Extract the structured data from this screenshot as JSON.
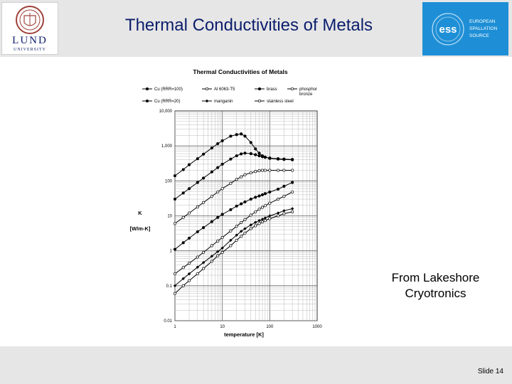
{
  "slide": {
    "title": "Thermal Conductivities of Metals",
    "credit_line1": "From Lakeshore",
    "credit_line2": "Cryotronics",
    "slide_number": "Slide 14",
    "lund_logo_text": "LUND",
    "lund_logo_subtext": "UNIVERSITY",
    "ess_logo_text": [
      "EUROPEAN",
      "SPALLATION",
      "SOURCE"
    ],
    "ess_logo_mark": "ess"
  },
  "colors": {
    "title": "#0b1e6b",
    "ess_blue": "#1e8fd6",
    "band": "#e6e6e6",
    "lund_red": "#a0423a"
  },
  "chart_data": {
    "type": "line",
    "title": "Thermal Conductivities of Metals",
    "xlabel": "temperature [K]",
    "ylabel_line1": "K",
    "ylabel_line2": "[W/m-K]",
    "xscale": "log",
    "yscale": "log",
    "xlim": [
      1,
      1000
    ],
    "ylim": [
      0.01,
      10000
    ],
    "grid": true,
    "legend_position": "top",
    "x_tick_labels": [
      "1",
      "10",
      "100",
      "1000"
    ],
    "y_tick_labels": [
      "0.01",
      "0.1",
      "1",
      "10",
      "100",
      "1,000",
      "10,000"
    ],
    "series": [
      {
        "name": "Cu (RRR=100)",
        "marker": "filled-circle",
        "x": [
          1,
          1.5,
          2,
          3,
          4,
          6,
          8,
          10,
          15,
          20,
          25,
          30,
          40,
          50,
          60,
          70,
          80,
          100,
          150,
          200,
          300
        ],
        "y": [
          140,
          210,
          290,
          430,
          580,
          870,
          1160,
          1400,
          1900,
          2100,
          2200,
          1900,
          1250,
          820,
          620,
          520,
          480,
          440,
          420,
          410,
          400
        ]
      },
      {
        "name": "Cu (RRR=20)",
        "marker": "filled-circle",
        "x": [
          1,
          1.5,
          2,
          3,
          4,
          6,
          8,
          10,
          15,
          20,
          25,
          30,
          40,
          50,
          60,
          70,
          80,
          100,
          150,
          200,
          300
        ],
        "y": [
          30,
          45,
          60,
          90,
          120,
          180,
          240,
          300,
          420,
          520,
          590,
          620,
          600,
          560,
          520,
          490,
          470,
          450,
          430,
          420,
          410
        ]
      },
      {
        "name": "Al 6063-T5",
        "marker": "open-circle",
        "x": [
          1,
          1.5,
          2,
          3,
          4,
          6,
          8,
          10,
          15,
          20,
          25,
          30,
          40,
          50,
          60,
          70,
          80,
          100,
          150,
          200,
          300
        ],
        "y": [
          6,
          9,
          12,
          18,
          24,
          36,
          48,
          60,
          85,
          110,
          130,
          150,
          170,
          185,
          195,
          200,
          200,
          200,
          200,
          200,
          200
        ]
      },
      {
        "name": "brass",
        "marker": "filled-circle",
        "x": [
          1,
          1.5,
          2,
          3,
          4,
          6,
          8,
          10,
          15,
          20,
          25,
          30,
          40,
          50,
          60,
          70,
          80,
          100,
          150,
          200,
          300
        ],
        "y": [
          1.1,
          1.7,
          2.3,
          3.5,
          4.6,
          6.8,
          9.0,
          11,
          15,
          19,
          22,
          25,
          30,
          34,
          37,
          40,
          43,
          48,
          58,
          70,
          90
        ]
      },
      {
        "name": "manganin",
        "marker": "filled-diamond",
        "x": [
          1,
          1.5,
          2,
          3,
          4,
          6,
          8,
          10,
          15,
          20,
          25,
          30,
          40,
          50,
          60,
          70,
          80,
          100,
          150,
          200,
          300
        ],
        "y": [
          0.1,
          0.16,
          0.22,
          0.34,
          0.46,
          0.7,
          0.95,
          1.2,
          2.0,
          2.8,
          3.6,
          4.3,
          5.5,
          6.5,
          7.3,
          8.0,
          8.7,
          10,
          12,
          14,
          16
        ]
      },
      {
        "name": "stainless steel",
        "marker": "open-circle",
        "x": [
          1,
          1.5,
          2,
          3,
          4,
          6,
          8,
          10,
          15,
          20,
          25,
          30,
          40,
          50,
          60,
          70,
          80,
          100,
          150,
          200,
          300
        ],
        "y": [
          0.06,
          0.1,
          0.14,
          0.22,
          0.31,
          0.5,
          0.72,
          0.9,
          1.4,
          2.0,
          2.6,
          3.2,
          4.3,
          5.2,
          6.0,
          6.7,
          7.3,
          8.3,
          10,
          11.5,
          13
        ]
      },
      {
        "name": "phosphor bronze",
        "marker": "open-circle",
        "x": [
          1,
          1.5,
          2,
          3,
          4,
          6,
          8,
          10,
          15,
          20,
          25,
          30,
          40,
          50,
          60,
          70,
          80,
          100,
          150,
          200,
          300
        ],
        "y": [
          0.22,
          0.33,
          0.44,
          0.66,
          0.9,
          1.4,
          1.9,
          2.4,
          3.7,
          5.0,
          6.4,
          7.8,
          10.5,
          13,
          15.5,
          17.5,
          19.5,
          23,
          30,
          36,
          48
        ]
      }
    ]
  }
}
